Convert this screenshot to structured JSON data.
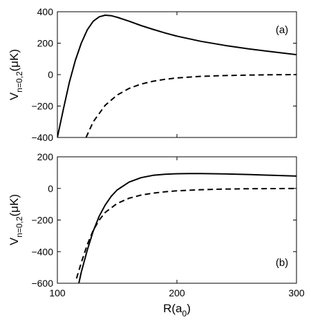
{
  "chart_data": [
    {
      "panel": "(a)",
      "type": "line",
      "xlim": [
        100,
        300
      ],
      "ylim": [
        -400,
        400
      ],
      "xticks": [
        100,
        200,
        300
      ],
      "yticks": [
        -400,
        -200,
        0,
        200,
        400
      ],
      "xtick_labels_shown": false,
      "ylabel": {
        "main": "V",
        "sub": "n=0,2",
        "unit": "(μK)"
      },
      "series": [
        {
          "style": "solid",
          "x": [
            100,
            105,
            110,
            115,
            120,
            125,
            130,
            135,
            140,
            145,
            150,
            160,
            170,
            180,
            190,
            200,
            220,
            240,
            260,
            280,
            300
          ],
          "y": [
            -400,
            -220,
            -50,
            90,
            200,
            285,
            340,
            368,
            378,
            375,
            365,
            340,
            312,
            288,
            265,
            245,
            212,
            186,
            164,
            145,
            127
          ]
        },
        {
          "style": "dashed",
          "x": [
            124,
            130,
            140,
            150,
            160,
            170,
            180,
            190,
            200,
            220,
            240,
            260,
            280,
            300
          ],
          "y": [
            -400,
            -300,
            -195,
            -130,
            -88,
            -60,
            -42,
            -30,
            -21,
            -11,
            -6,
            -3,
            -1,
            0
          ]
        }
      ]
    },
    {
      "panel": "(b)",
      "type": "line",
      "xlim": [
        100,
        300
      ],
      "ylim": [
        -600,
        200
      ],
      "xticks": [
        100,
        200,
        300
      ],
      "yticks": [
        -600,
        -400,
        -200,
        0,
        200
      ],
      "xtick_labels": [
        "100",
        "200",
        "300"
      ],
      "xlabel": {
        "main": "R(a",
        "sub": "0",
        "end": ")"
      },
      "ylabel": {
        "main": "V",
        "sub": "n=0,2",
        "unit": "(μK)"
      },
      "series": [
        {
          "style": "solid",
          "x": [
            118,
            120,
            125,
            130,
            135,
            140,
            145,
            150,
            160,
            170,
            180,
            190,
            200,
            210,
            220,
            240,
            260,
            280,
            300
          ],
          "y": [
            -600,
            -530,
            -390,
            -270,
            -175,
            -105,
            -50,
            -10,
            40,
            68,
            83,
            90,
            93,
            94,
            94,
            92,
            88,
            83,
            78
          ]
        },
        {
          "style": "dashed",
          "x": [
            116,
            120,
            125,
            130,
            135,
            140,
            150,
            160,
            170,
            180,
            190,
            200,
            220,
            240,
            260,
            280,
            300
          ],
          "y": [
            -570,
            -470,
            -355,
            -265,
            -200,
            -152,
            -95,
            -62,
            -42,
            -30,
            -21,
            -15,
            -8,
            -4,
            -2,
            -1,
            0
          ]
        }
      ]
    }
  ]
}
